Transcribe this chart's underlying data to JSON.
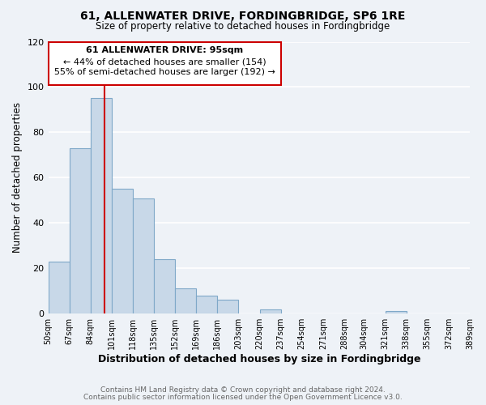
{
  "title": "61, ALLENWATER DRIVE, FORDINGBRIDGE, SP6 1RE",
  "subtitle": "Size of property relative to detached houses in Fordingbridge",
  "xlabel": "Distribution of detached houses by size in Fordingbridge",
  "ylabel": "Number of detached properties",
  "bin_edges": [
    50,
    67,
    84,
    101,
    118,
    135,
    152,
    169,
    186,
    203,
    220,
    237,
    254,
    271,
    288,
    304,
    321,
    338,
    355,
    372,
    389
  ],
  "counts": [
    23,
    73,
    95,
    55,
    51,
    24,
    11,
    8,
    6,
    0,
    2,
    0,
    0,
    0,
    0,
    0,
    1,
    0,
    0,
    0
  ],
  "bar_color": "#c8d8e8",
  "bar_edge_color": "#7fa8c8",
  "property_size": 95,
  "vline_color": "#cc0000",
  "annotation_box_edge_color": "#cc0000",
  "annotation_text_line1": "61 ALLENWATER DRIVE: 95sqm",
  "annotation_text_line2": "← 44% of detached houses are smaller (154)",
  "annotation_text_line3": "55% of semi-detached houses are larger (192) →",
  "ylim": [
    0,
    120
  ],
  "yticks": [
    0,
    20,
    40,
    60,
    80,
    100,
    120
  ],
  "footer_line1": "Contains HM Land Registry data © Crown copyright and database right 2024.",
  "footer_line2": "Contains public sector information licensed under the Open Government Licence v3.0.",
  "background_color": "#eef2f7",
  "grid_color": "#ffffff",
  "tick_labels": [
    "50sqm",
    "67sqm",
    "84sqm",
    "101sqm",
    "118sqm",
    "135sqm",
    "152sqm",
    "169sqm",
    "186sqm",
    "203sqm",
    "220sqm",
    "237sqm",
    "254sqm",
    "271sqm",
    "288sqm",
    "304sqm",
    "321sqm",
    "338sqm",
    "355sqm",
    "372sqm",
    "389sqm"
  ]
}
